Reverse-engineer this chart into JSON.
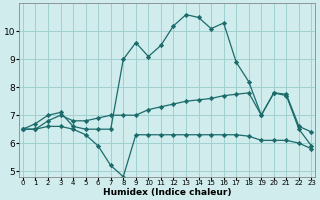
{
  "xlabel": "Humidex (Indice chaleur)",
  "x": [
    0,
    1,
    2,
    3,
    4,
    5,
    6,
    7,
    8,
    9,
    10,
    11,
    12,
    13,
    14,
    15,
    16,
    17,
    18,
    19,
    20,
    21,
    22,
    23
  ],
  "line_top": [
    6.5,
    6.7,
    7.0,
    7.1,
    6.6,
    6.5,
    6.5,
    6.5,
    9.0,
    9.6,
    9.1,
    9.5,
    10.2,
    10.6,
    10.5,
    10.1,
    10.3,
    8.9,
    8.2,
    7.0,
    7.8,
    7.7,
    6.5,
    5.9
  ],
  "line_mid": [
    6.5,
    6.5,
    6.8,
    7.0,
    6.8,
    6.8,
    6.9,
    7.0,
    7.0,
    7.0,
    7.2,
    7.3,
    7.4,
    7.5,
    7.55,
    7.6,
    7.7,
    7.75,
    7.8,
    7.0,
    7.8,
    7.75,
    6.6,
    6.4
  ],
  "line_bot": [
    6.5,
    6.5,
    6.6,
    6.6,
    6.5,
    6.3,
    5.9,
    5.2,
    4.8,
    6.3,
    6.3,
    6.3,
    6.3,
    6.3,
    6.3,
    6.3,
    6.3,
    6.3,
    6.25,
    6.1,
    6.1,
    6.1,
    6.0,
    5.8
  ],
  "line_color": "#1b6b6b",
  "bg_color": "#d0ecec",
  "grid_color": "#a0d0d0",
  "ylim": [
    4.8,
    11.0
  ],
  "yticks": [
    5,
    6,
    7,
    8,
    9,
    10
  ],
  "xticks": [
    0,
    1,
    2,
    3,
    4,
    5,
    6,
    7,
    8,
    9,
    10,
    11,
    12,
    13,
    14,
    15,
    16,
    17,
    18,
    19,
    20,
    21,
    22,
    23
  ]
}
